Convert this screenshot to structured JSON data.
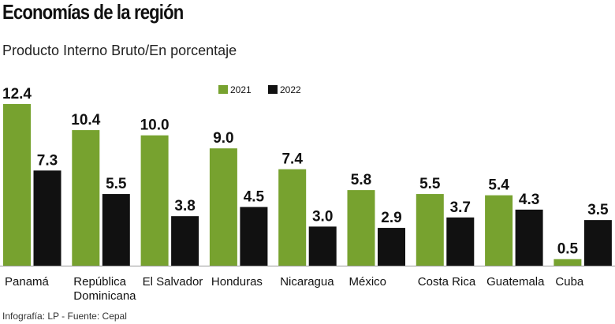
{
  "title": "Economías de la región",
  "subtitle": "Producto Interno Bruto/En porcentaje",
  "footer": "Infografía: LP - Fuente: Cepal",
  "chart_data": {
    "type": "bar",
    "categories": [
      "Panamá",
      "República Dominicana",
      "El Salvador",
      "Honduras",
      "Nicaragua",
      "México",
      "Costa Rica",
      "Guatemala",
      "Cuba"
    ],
    "series": [
      {
        "name": "2021",
        "color": "#77a22f",
        "values": [
          12.4,
          10.4,
          10.0,
          9.0,
          7.4,
          5.8,
          5.5,
          5.4,
          0.5
        ]
      },
      {
        "name": "2022",
        "color": "#111111",
        "values": [
          7.3,
          5.5,
          3.8,
          4.5,
          3.0,
          2.9,
          3.7,
          4.3,
          3.5
        ]
      }
    ],
    "data_labels": [
      [
        "12.4",
        "10.4",
        "10.0",
        "9.0",
        "7.4",
        "5.8",
        "5.5",
        "5.4",
        "0.5"
      ],
      [
        "7.3",
        "5.5",
        "3.8",
        "4.5",
        "3.0",
        "2.9",
        "3.7",
        "4.3",
        "3.5"
      ]
    ],
    "legend": "top-center",
    "grid": false,
    "ylim": [
      0,
      12.4
    ]
  }
}
